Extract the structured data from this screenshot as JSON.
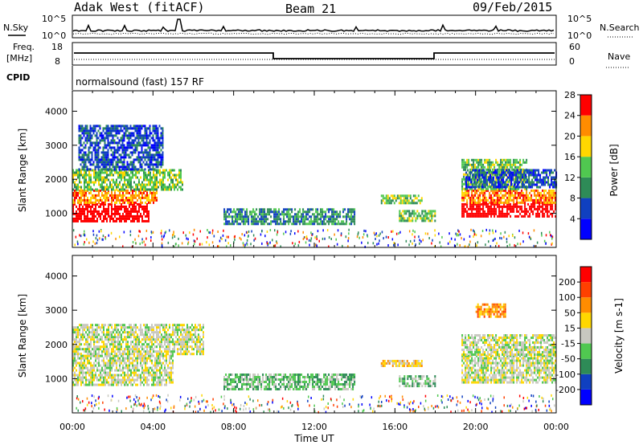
{
  "header": {
    "station": "Adak West (fitACF)",
    "beam": "Beam 21",
    "date": "09/Feb/2015"
  },
  "panels": {
    "nsky_label": "N.Sky",
    "nsearch_label": "N.Search",
    "nsky_ticks": [
      "10^5",
      "10^0"
    ],
    "nsearch_ticks": [
      "10^5",
      "10^0"
    ],
    "freq_label": "Freq.",
    "freq_unit": "[MHz]",
    "freq_ticks": [
      "18",
      "8"
    ],
    "nave_label": "Nave",
    "nave_ticks": [
      "60",
      "0"
    ],
    "cpid_label": "CPID",
    "cpid_text": "normalsound (fast) 157 RF"
  },
  "chart_data": [
    {
      "type": "heatmap",
      "name": "power",
      "ylabel": "Slant Range [km]",
      "ylim": [
        0,
        4600
      ],
      "yticks": [
        "1000",
        "2000",
        "3000",
        "4000"
      ],
      "colorbar_label": "Power [dB]",
      "colorbar_ticks": [
        "4",
        "8",
        "12",
        "16",
        "20",
        "24",
        "28"
      ],
      "colors": [
        "#0000ff",
        "#1040c0",
        "#2e8b57",
        "#50c850",
        "#ffd700",
        "#ff8c00",
        "#ff0000"
      ],
      "regions": [
        {
          "t0": 0.0,
          "t1": 3.8,
          "r0": 800,
          "r1": 1300,
          "level": 7
        },
        {
          "t0": 0.0,
          "t1": 4.2,
          "r0": 1300,
          "r1": 1700,
          "level": 5
        },
        {
          "t0": 0.0,
          "t1": 5.5,
          "r0": 1700,
          "r1": 2300,
          "level": 3
        },
        {
          "t0": 0.3,
          "t1": 4.5,
          "r0": 2300,
          "r1": 3600,
          "level": 1
        },
        {
          "t0": 7.5,
          "t1": 14.0,
          "r0": 700,
          "r1": 1150,
          "level": 2
        },
        {
          "t0": 15.3,
          "t1": 17.3,
          "r0": 1300,
          "r1": 1550,
          "level": 3
        },
        {
          "t0": 16.2,
          "t1": 18.0,
          "r0": 750,
          "r1": 1100,
          "level": 3
        },
        {
          "t0": 19.3,
          "t1": 24.0,
          "r0": 900,
          "r1": 1300,
          "level": 7
        },
        {
          "t0": 19.3,
          "t1": 24.0,
          "r0": 1300,
          "r1": 1700,
          "level": 5
        },
        {
          "t0": 19.3,
          "t1": 22.5,
          "r0": 1700,
          "r1": 2600,
          "level": 3
        },
        {
          "t0": 19.5,
          "t1": 24.0,
          "r0": 1800,
          "r1": 2300,
          "level": 1
        }
      ]
    },
    {
      "type": "heatmap",
      "name": "velocity",
      "xlabel": "Time UT",
      "ylabel": "Slant Range [km]",
      "ylim": [
        0,
        4600
      ],
      "yticks": [
        "1000",
        "2000",
        "3000",
        "4000"
      ],
      "xticks": [
        "00:00",
        "04:00",
        "08:00",
        "12:00",
        "16:00",
        "20:00",
        "00:00"
      ],
      "colorbar_label": "Velocity [m s-1]",
      "colorbar_ticks": [
        "200",
        "100",
        "50",
        "15",
        "-15",
        "-50",
        "-100",
        "-200"
      ],
      "colors": [
        "#0000ff",
        "#1040c0",
        "#2e8b57",
        "#50c850",
        "#c8c8c0",
        "#ffd700",
        "#ff8c00",
        "#ff4000",
        "#ff0000"
      ],
      "regions": [
        {
          "t0": 0.0,
          "t1": 5.0,
          "r0": 800,
          "r1": 1700,
          "level": 4
        },
        {
          "t0": 0.0,
          "t1": 6.5,
          "r0": 1700,
          "r1": 2600,
          "level": 4
        },
        {
          "t0": 7.5,
          "t1": 14.0,
          "r0": 700,
          "r1": 1150,
          "level": 3
        },
        {
          "t0": 15.3,
          "t1": 17.3,
          "r0": 1350,
          "r1": 1550,
          "level": 5
        },
        {
          "t0": 16.2,
          "t1": 18.0,
          "r0": 750,
          "r1": 1100,
          "level": 3
        },
        {
          "t0": 19.3,
          "t1": 24.0,
          "r0": 900,
          "r1": 1700,
          "level": 4
        },
        {
          "t0": 19.3,
          "t1": 24.0,
          "r0": 1700,
          "r1": 2300,
          "level": 4
        },
        {
          "t0": 20.0,
          "t1": 21.5,
          "r0": 2800,
          "r1": 3200,
          "level": 6
        }
      ]
    }
  ]
}
